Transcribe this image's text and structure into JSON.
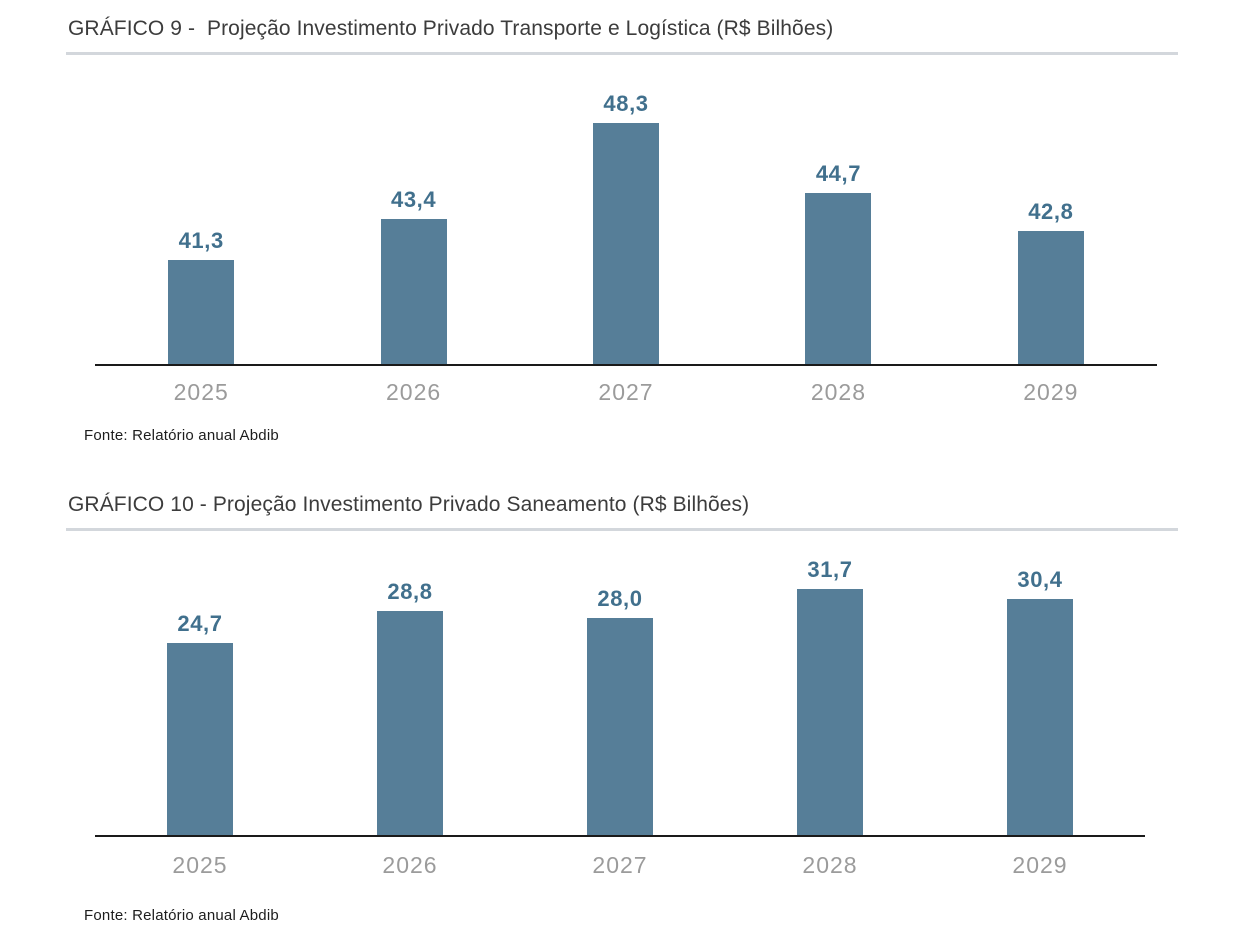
{
  "colors": {
    "page_bg": "#ffffff",
    "bar_fill": "#567e98",
    "value_label": "#41708d",
    "axis_line": "#1a1a1a",
    "title_text": "#3c3c3c",
    "tick_label": "#9b9b9b",
    "source_text": "#1d1d1d",
    "title_rule": "#d3d7dc"
  },
  "chart_data": [
    {
      "type": "bar",
      "title": "GRÁFICO 9 -  Projeção Investimento Privado Transporte e Logística (R$ Bilhões)",
      "categories": [
        "2025",
        "2026",
        "2027",
        "2028",
        "2029"
      ],
      "values": [
        41.3,
        43.4,
        48.3,
        44.7,
        42.8
      ],
      "value_labels": [
        "41,3",
        "43,4",
        "48,3",
        "44,7",
        "42,8"
      ],
      "unit": "R$ Bilhões",
      "ylim": [
        36,
        51.8
      ],
      "grid": false,
      "legend": false,
      "bar_color": "#567e98",
      "source": "Fonte: Relatório anual Abdib"
    },
    {
      "type": "bar",
      "title": "GRÁFICO 10 - Projeção Investimento Privado Saneamento (R$ Bilhões)",
      "categories": [
        "2025",
        "2026",
        "2027",
        "2028",
        "2029"
      ],
      "values": [
        24.7,
        28.8,
        28.0,
        31.7,
        30.4
      ],
      "value_labels": [
        "24,7",
        "28,8",
        "28,0",
        "31,7",
        "30,4"
      ],
      "unit": "R$ Bilhões",
      "ylim": [
        0,
        39.3
      ],
      "grid": false,
      "legend": false,
      "bar_color": "#567e98",
      "source": "Fonte: Relatório anual Abdib"
    }
  ]
}
